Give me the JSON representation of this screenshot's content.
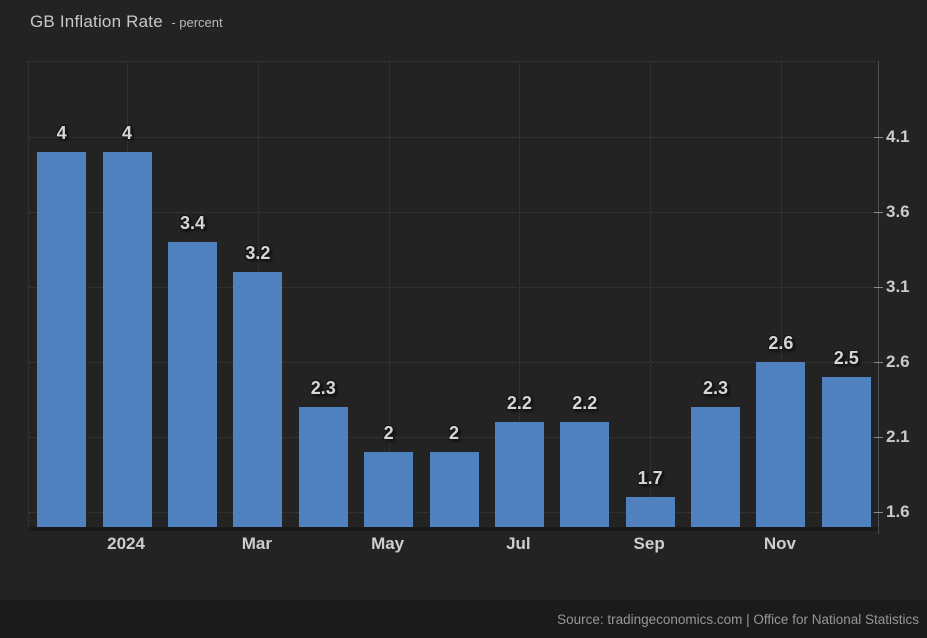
{
  "header": {
    "title": "GB Inflation Rate",
    "subtitle": "- percent"
  },
  "footer": {
    "source": "Source: tradingeconomics.com | Office for National Statistics"
  },
  "chart_data": {
    "type": "bar",
    "title": "GB Inflation Rate",
    "unit": "percent",
    "values": [
      4,
      4,
      3.4,
      3.2,
      2.3,
      2,
      2,
      2.2,
      2.2,
      1.7,
      2.3,
      2.6,
      2.5
    ],
    "bar_labels": [
      "4",
      "4",
      "3.4",
      "3.2",
      "2.3",
      "2",
      "2",
      "2.2",
      "2.2",
      "1.7",
      "2.3",
      "2.6",
      "2.5"
    ],
    "x_ticks": [
      {
        "bar_index": 1,
        "label": "2024"
      },
      {
        "bar_index": 3,
        "label": "Mar"
      },
      {
        "bar_index": 5,
        "label": "May"
      },
      {
        "bar_index": 7,
        "label": "Jul"
      },
      {
        "bar_index": 9,
        "label": "Sep"
      },
      {
        "bar_index": 11,
        "label": "Nov"
      }
    ],
    "y_ticks": [
      4.1,
      3.6,
      3.1,
      2.6,
      2.1,
      1.6
    ],
    "y_tick_labels": [
      "4.1",
      "3.6",
      "3.1",
      "2.6",
      "2.1",
      "1.6"
    ],
    "ylim": [
      1.5,
      4.6
    ],
    "grid": {
      "style": "dotted",
      "horizontal": true,
      "vertical": true,
      "top_border": true
    },
    "legend": "none",
    "y_axis_position": "right",
    "colors": {
      "bar": "#4E81BD",
      "background": "#232323",
      "footer_background": "#1b1b1b",
      "grid": "#3e3e3e",
      "axis_line": "#4f4f4f",
      "value_label": "#d6d6d6",
      "tick_label": "#cbcbcb",
      "title": "#c9c9c9",
      "source": "#979797"
    }
  }
}
